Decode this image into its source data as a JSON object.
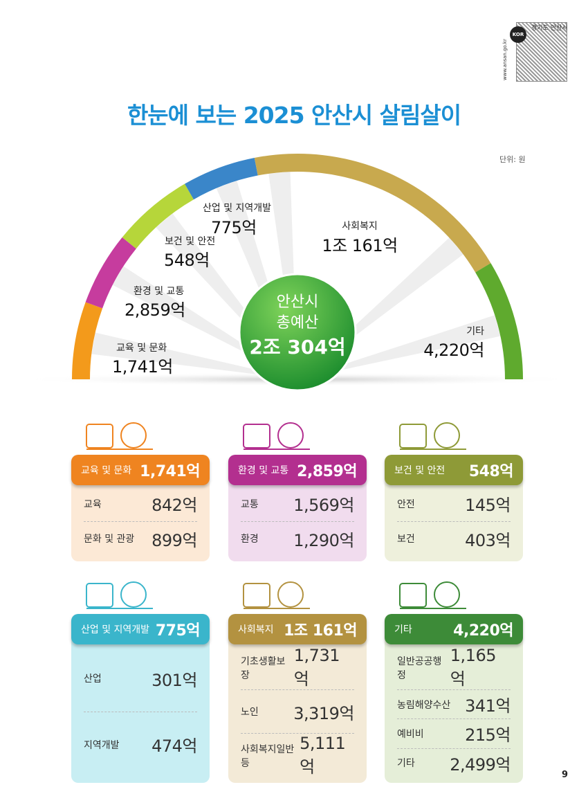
{
  "header": {
    "region": "경기도 안산시",
    "url": "www.ansan.go.kr",
    "badge": "KOR",
    "title": "한눈에 보는 2025 안산시 살림살이",
    "unit": "단위: 원"
  },
  "total": {
    "lines": [
      "안산시",
      "총예산"
    ],
    "amount": "2조 304억"
  },
  "gauge": [
    {
      "label": "교육 및 문화",
      "amount": "1,741억"
    },
    {
      "label": "환경 및 교통",
      "amount": "2,859억"
    },
    {
      "label": "보건 및 안전",
      "amount": "548억"
    },
    {
      "label": "산업 및 지역개발",
      "amount": "775억"
    },
    {
      "label": "사회복지",
      "amount": "1조 161억"
    },
    {
      "label": "기타",
      "amount": "4,220억"
    }
  ],
  "cards": [
    {
      "title": "교육 및 문화",
      "amount": "1,741억",
      "items": [
        {
          "label": "교육",
          "amount": "842억"
        },
        {
          "label": "문화 및 관광",
          "amount": "899억"
        }
      ]
    },
    {
      "title": "환경 및 교통",
      "amount": "2,859억",
      "items": [
        {
          "label": "교통",
          "amount": "1,569억"
        },
        {
          "label": "환경",
          "amount": "1,290억"
        }
      ]
    },
    {
      "title": "보건 및 안전",
      "amount": "548억",
      "items": [
        {
          "label": "안전",
          "amount": "145억"
        },
        {
          "label": "보건",
          "amount": "403억"
        }
      ]
    },
    {
      "title": "산업 및 지역개발",
      "amount": "775억",
      "items": [
        {
          "label": "산업",
          "amount": "301억"
        },
        {
          "label": "지역개발",
          "amount": "474억"
        }
      ]
    },
    {
      "title": "사회복지",
      "amount": "1조 161억",
      "items": [
        {
          "label": "기초생활보장",
          "amount": "1,731억"
        },
        {
          "label": "노인",
          "amount": "3,319억"
        },
        {
          "label": "사회복지일반 등",
          "amount": "5,111억"
        }
      ]
    },
    {
      "title": "기타",
      "amount": "4,220억",
      "items": [
        {
          "label": "일반공공행정",
          "amount": "1,165억"
        },
        {
          "label": "농림해양수산",
          "amount": "341억"
        },
        {
          "label": "예비비",
          "amount": "215억"
        },
        {
          "label": "기타",
          "amount": "2,499억"
        }
      ]
    }
  ],
  "page_number": "9"
}
